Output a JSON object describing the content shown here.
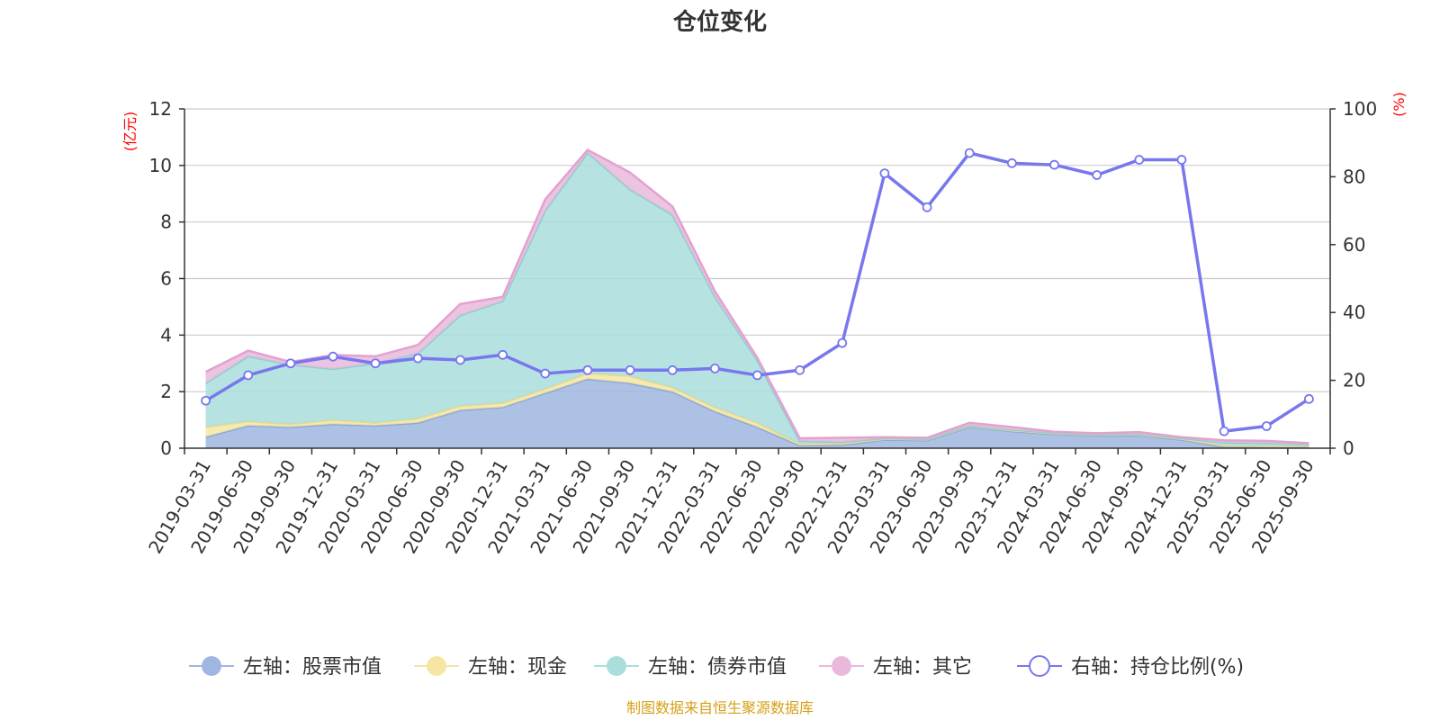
{
  "chart_data": {
    "type": "area",
    "title": "仓位变化",
    "left_unit": "(亿元)",
    "right_unit": "(%)",
    "ylim_left": [
      0,
      12
    ],
    "yticks_left": [
      "0",
      "2",
      "4",
      "6",
      "8",
      "10",
      "12"
    ],
    "ylim_right": [
      0,
      100
    ],
    "yticks_right": [
      "0",
      "20",
      "40",
      "60",
      "80",
      "100"
    ],
    "categories": [
      "2019-03-31",
      "2019-06-30",
      "2019-09-30",
      "2019-12-31",
      "2020-03-31",
      "2020-06-30",
      "2020-09-30",
      "2020-12-31",
      "2021-03-31",
      "2021-06-30",
      "2021-09-30",
      "2021-12-31",
      "2022-03-31",
      "2022-06-30",
      "2022-09-30",
      "2022-12-31",
      "2023-03-31",
      "2023-06-30",
      "2023-09-30",
      "2023-12-31",
      "2024-03-31",
      "2024-06-30",
      "2024-09-30",
      "2024-12-31",
      "2025-03-31",
      "2025-06-30",
      "2025-09-30"
    ],
    "series": [
      {
        "name": "左轴：股票市值",
        "axis": "left",
        "color": "#9fb6e0",
        "values": [
          0.4,
          0.8,
          0.75,
          0.85,
          0.8,
          0.9,
          1.35,
          1.45,
          1.95,
          2.45,
          2.3,
          2.0,
          1.3,
          0.75,
          0.1,
          0.12,
          0.3,
          0.28,
          0.75,
          0.6,
          0.5,
          0.45,
          0.45,
          0.3,
          0.05,
          0.05,
          0.05
        ]
      },
      {
        "name": "左轴：现金",
        "axis": "left",
        "color": "#f5e6a3",
        "values": [
          0.35,
          0.15,
          0.1,
          0.15,
          0.1,
          0.15,
          0.15,
          0.15,
          0.15,
          0.2,
          0.25,
          0.15,
          0.15,
          0.15,
          0.05,
          0.05,
          0.03,
          0.03,
          0.03,
          0.03,
          0.03,
          0.03,
          0.03,
          0.03,
          0.05,
          0.03,
          0.03
        ]
      },
      {
        "name": "左轴：债券市值",
        "axis": "left",
        "color": "#a9dedc",
        "values": [
          1.55,
          2.3,
          2.1,
          1.8,
          2.1,
          2.3,
          3.2,
          3.6,
          6.3,
          7.8,
          6.6,
          6.1,
          3.9,
          2.2,
          0.1,
          0.05,
          0.02,
          0.02,
          0.02,
          0.02,
          0.02,
          0.02,
          0.02,
          0.02,
          0.1,
          0.1,
          0.05
        ]
      },
      {
        "name": "左轴：其它",
        "axis": "left",
        "color": "#e9b9dc",
        "values": [
          0.4,
          0.2,
          0.1,
          0.5,
          0.25,
          0.3,
          0.4,
          0.15,
          0.4,
          0.1,
          0.6,
          0.3,
          0.2,
          0.1,
          0.1,
          0.15,
          0.04,
          0.04,
          0.1,
          0.1,
          0.03,
          0.03,
          0.07,
          0.04,
          0.08,
          0.08,
          0.05
        ]
      },
      {
        "name": "右轴：持仓比例(%)",
        "axis": "right",
        "color": "#7777ee",
        "values": [
          14,
          21.5,
          25,
          27,
          25,
          26.5,
          26,
          27.5,
          22,
          23,
          23,
          23,
          23.5,
          21.5,
          23,
          31,
          81,
          71,
          87,
          84,
          83.5,
          80.5,
          85,
          85,
          5,
          6.5,
          14.5
        ]
      }
    ],
    "legend_position": "bottom",
    "source": "制图数据来自恒生聚源数据库"
  }
}
